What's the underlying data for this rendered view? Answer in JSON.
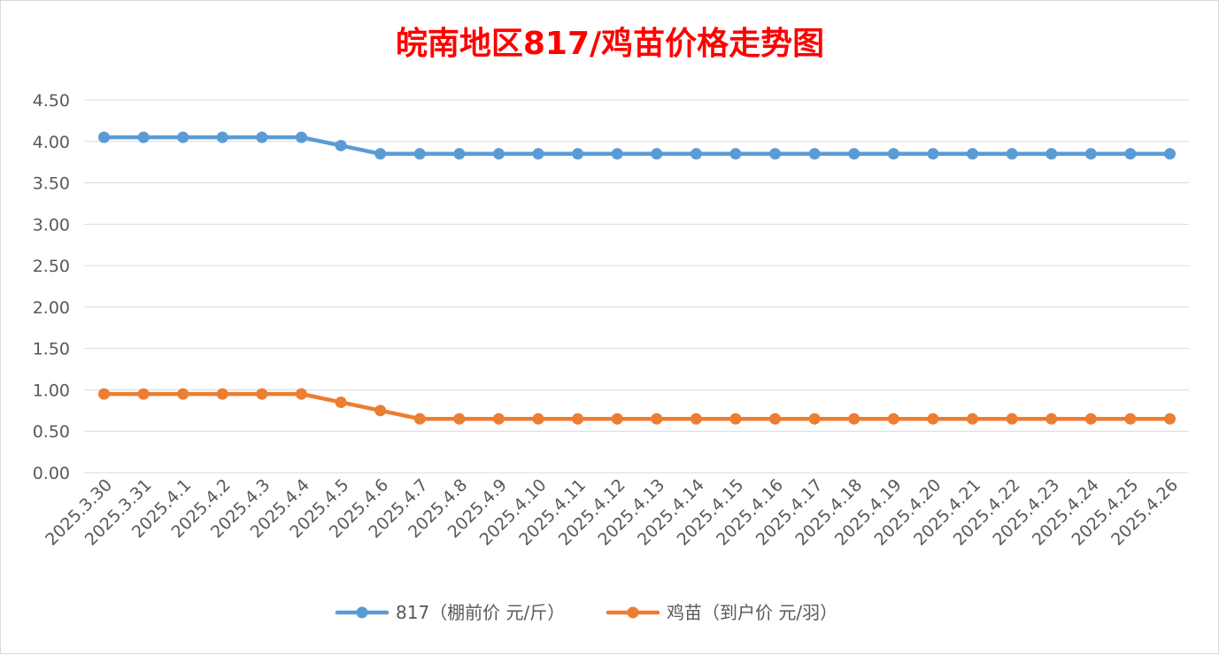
{
  "chart_data": {
    "type": "line",
    "title": "皖南地区817/鸡苗价格走势图",
    "xlabel": "",
    "ylabel": "",
    "ylim": [
      0,
      4.5
    ],
    "yticks": [
      "0.00",
      "0.50",
      "1.00",
      "1.50",
      "2.00",
      "2.50",
      "3.00",
      "3.50",
      "4.00",
      "4.50"
    ],
    "grid": true,
    "legend_position": "bottom",
    "categories": [
      "2025.3.30",
      "2025.3.31",
      "2025.4.1",
      "2025.4.2",
      "2025.4.3",
      "2025.4.4",
      "2025.4.5",
      "2025.4.6",
      "2025.4.7",
      "2025.4.8",
      "2025.4.9",
      "2025.4.10",
      "2025.4.11",
      "2025.4.12",
      "2025.4.13",
      "2025.4.14",
      "2025.4.15",
      "2025.4.16",
      "2025.4.17",
      "2025.4.18",
      "2025.4.19",
      "2025.4.20",
      "2025.4.21",
      "2025.4.22",
      "2025.4.23",
      "2025.4.24",
      "2025.4.25",
      "2025.4.26"
    ],
    "series": [
      {
        "name": "817（棚前价 元/斤）",
        "color": "#5b9bd5",
        "values": [
          4.05,
          4.05,
          4.05,
          4.05,
          4.05,
          4.05,
          3.95,
          3.85,
          3.85,
          3.85,
          3.85,
          3.85,
          3.85,
          3.85,
          3.85,
          3.85,
          3.85,
          3.85,
          3.85,
          3.85,
          3.85,
          3.85,
          3.85,
          3.85,
          3.85,
          3.85,
          3.85,
          3.85
        ]
      },
      {
        "name": "鸡苗（到户价 元/羽）",
        "color": "#ed7d31",
        "values": [
          0.95,
          0.95,
          0.95,
          0.95,
          0.95,
          0.95,
          0.85,
          0.75,
          0.65,
          0.65,
          0.65,
          0.65,
          0.65,
          0.65,
          0.65,
          0.65,
          0.65,
          0.65,
          0.65,
          0.65,
          0.65,
          0.65,
          0.65,
          0.65,
          0.65,
          0.65,
          0.65,
          0.65
        ]
      }
    ]
  }
}
